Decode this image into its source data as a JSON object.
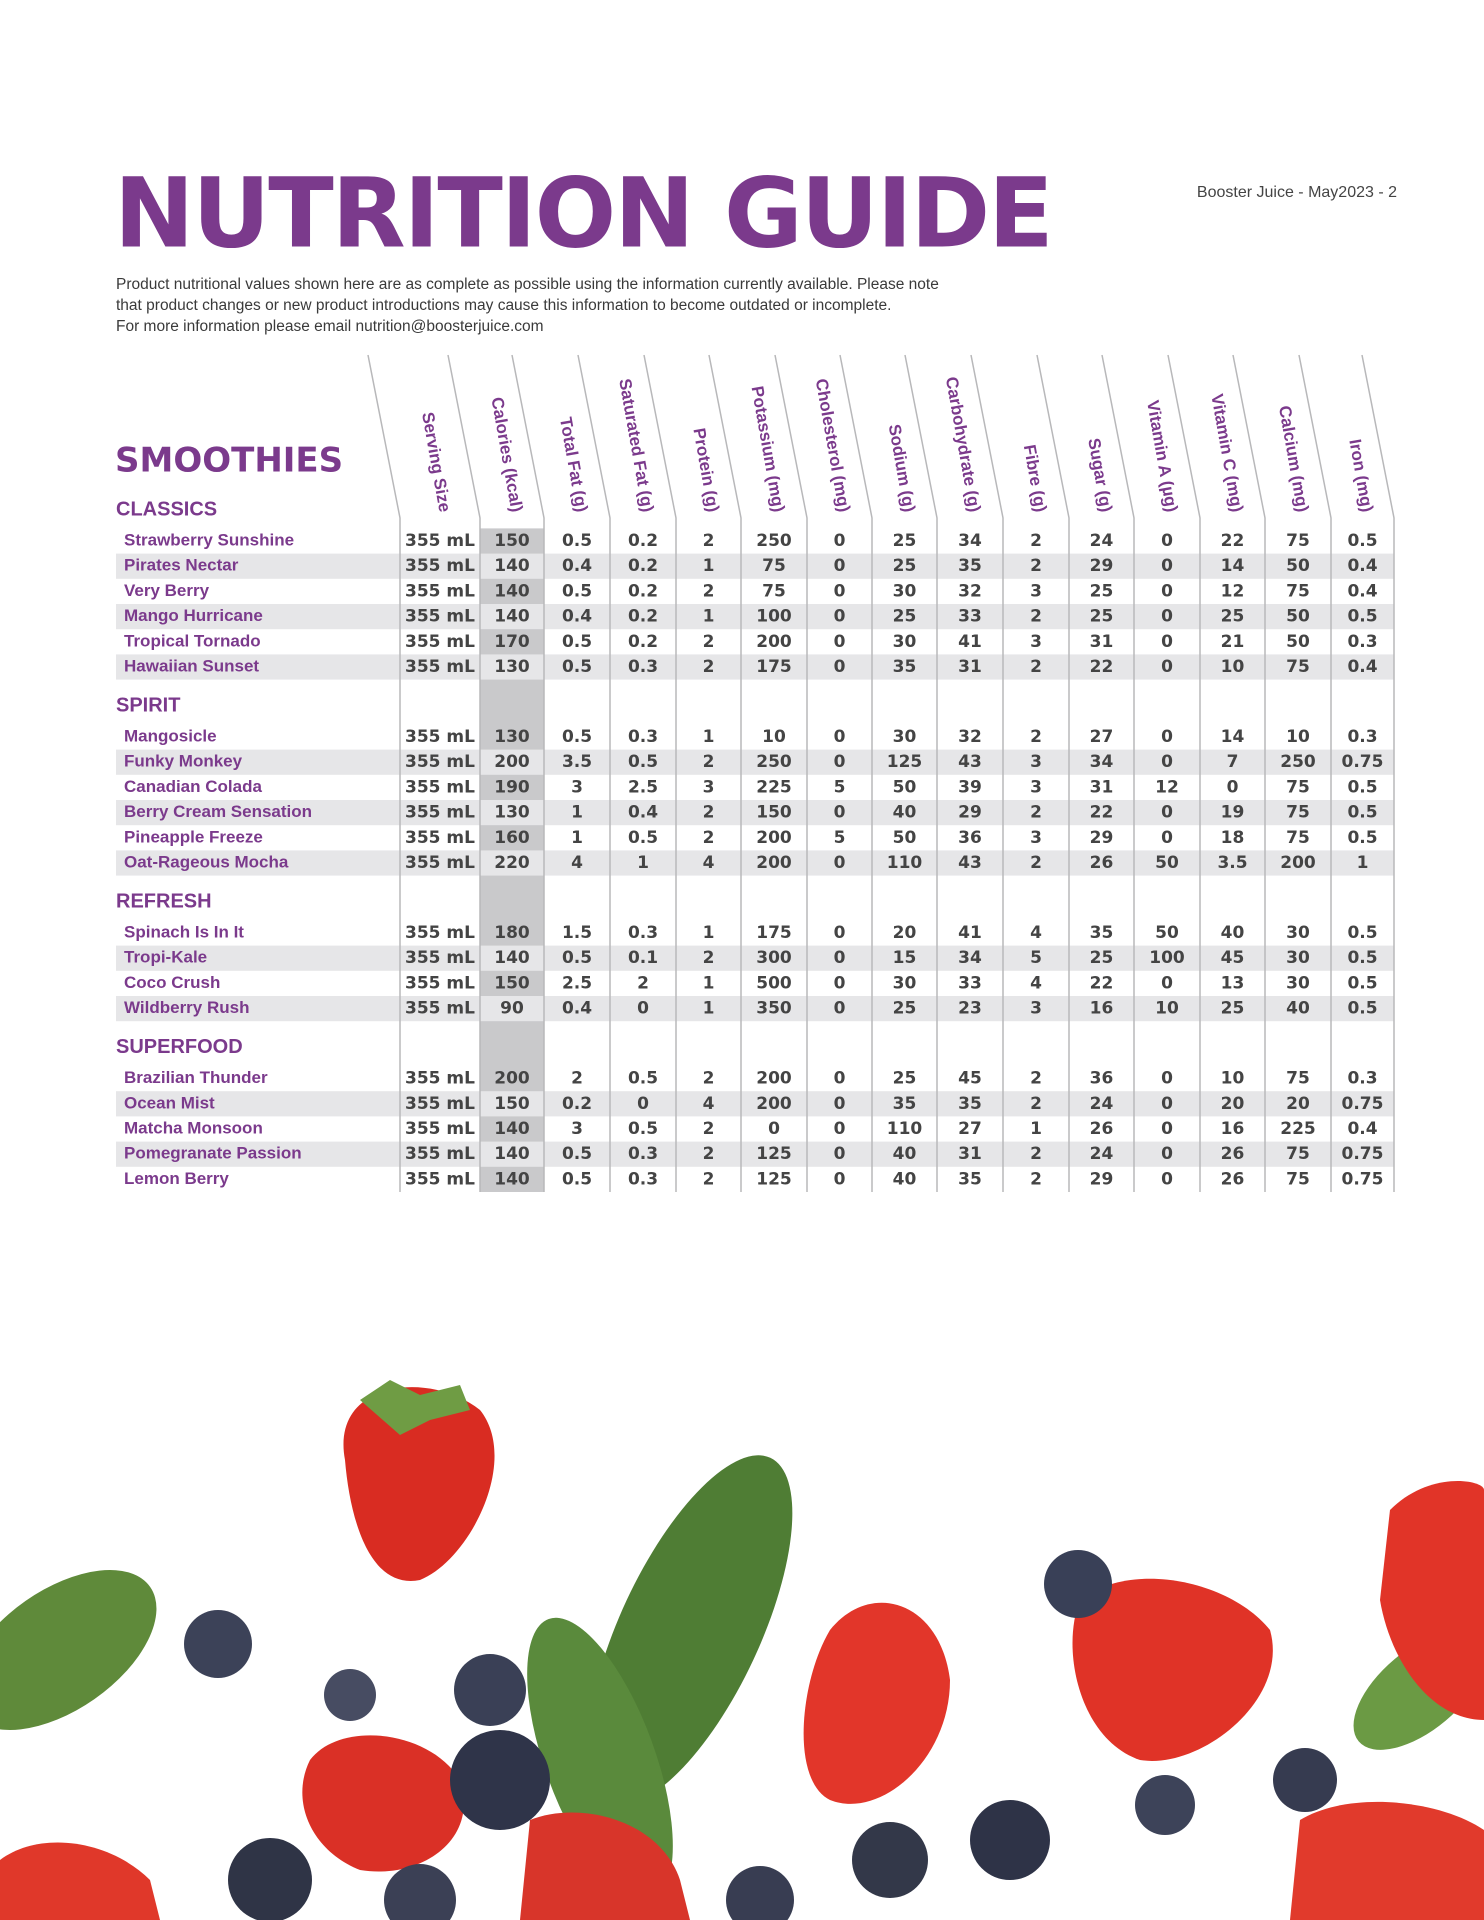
{
  "header": {
    "title": "NUTRITION GUIDE",
    "meta": "Booster Juice - May2023 - 2",
    "intro": [
      "Product nutritional values shown here are as complete as possible using the information currently available. Please note",
      "that product changes or new product introductions may cause this information to become outdated or incomplete.",
      "For more information please email  nutrition@boosterjuice.com"
    ]
  },
  "table": {
    "section_title": "SMOOTHIES",
    "columns": [
      "Serving Size",
      "Calories (kcal)",
      "Total Fat (g)",
      "Saturated Fat (g)",
      "Protein (g)",
      "Potassium (mg)",
      "Cholesterol (mg)",
      "Sodium (g)",
      "Carbohydrate (g)",
      "Fibre (g)",
      "Sugar (g)",
      "Vitamin A (µg)",
      "Vitamin C (mg)",
      "Calcium (mg)",
      "Iron (mg)"
    ],
    "groups": [
      {
        "name": "CLASSICS",
        "rows": [
          {
            "name": "Strawberry Sunshine",
            "values": [
              "355 mL",
              150,
              0.5,
              0.2,
              2,
              250,
              0,
              25,
              34,
              2,
              24,
              0,
              22,
              75,
              0.5
            ]
          },
          {
            "name": "Pirates Nectar",
            "values": [
              "355 mL",
              140,
              0.4,
              0.2,
              1,
              75,
              0,
              25,
              35,
              2,
              29,
              0,
              14,
              50,
              0.4
            ]
          },
          {
            "name": "Very Berry",
            "values": [
              "355 mL",
              140,
              0.5,
              0.2,
              2,
              75,
              0,
              30,
              32,
              3,
              25,
              0,
              12,
              75,
              0.4
            ]
          },
          {
            "name": "Mango Hurricane",
            "values": [
              "355 mL",
              140,
              0.4,
              0.2,
              1,
              100,
              0,
              25,
              33,
              2,
              25,
              0,
              25,
              50,
              0.5
            ]
          },
          {
            "name": "Tropical Tornado",
            "values": [
              "355 mL",
              170,
              0.5,
              0.2,
              2,
              200,
              0,
              30,
              41,
              3,
              31,
              0,
              21,
              50,
              0.3
            ]
          },
          {
            "name": "Hawaiian Sunset",
            "values": [
              "355 mL",
              130,
              0.5,
              0.3,
              2,
              175,
              0,
              35,
              31,
              2,
              22,
              0,
              10,
              75,
              0.4
            ]
          }
        ]
      },
      {
        "name": "SPIRIT",
        "rows": [
          {
            "name": "Mangosicle",
            "values": [
              "355 mL",
              130,
              0.5,
              0.3,
              1,
              10,
              0,
              30,
              32,
              2,
              27,
              0,
              14,
              10,
              0.3
            ]
          },
          {
            "name": "Funky Monkey",
            "values": [
              "355 mL",
              200,
              3.5,
              0.5,
              2,
              250,
              0,
              125,
              43,
              3,
              34,
              0,
              7,
              250,
              0.75
            ]
          },
          {
            "name": "Canadian Colada",
            "values": [
              "355 mL",
              190,
              3,
              2.5,
              3,
              225,
              5,
              50,
              39,
              3,
              31,
              12,
              0,
              75,
              0.5
            ]
          },
          {
            "name": "Berry Cream Sensation",
            "values": [
              "355 mL",
              130,
              1,
              0.4,
              2,
              150,
              0,
              40,
              29,
              2,
              22,
              0,
              19,
              75,
              0.5
            ]
          },
          {
            "name": "Pineapple Freeze",
            "values": [
              "355 mL",
              160,
              1,
              0.5,
              2,
              200,
              5,
              50,
              36,
              3,
              29,
              0,
              18,
              75,
              0.5
            ]
          },
          {
            "name": "Oat-Rageous Mocha",
            "values": [
              "355 mL",
              220,
              4,
              1,
              4,
              200,
              0,
              110,
              43,
              2,
              26,
              50,
              3.5,
              200,
              1
            ]
          }
        ]
      },
      {
        "name": "REFRESH",
        "rows": [
          {
            "name": "Spinach Is In It",
            "values": [
              "355 mL",
              180,
              1.5,
              0.3,
              1,
              175,
              0,
              20,
              41,
              4,
              35,
              50,
              40,
              30,
              0.5
            ]
          },
          {
            "name": "Tropi-Kale",
            "values": [
              "355 mL",
              140,
              0.5,
              0.1,
              2,
              300,
              0,
              15,
              34,
              5,
              25,
              100,
              45,
              30,
              0.5
            ]
          },
          {
            "name": "Coco Crush",
            "values": [
              "355 mL",
              150,
              2.5,
              2,
              1,
              500,
              0,
              30,
              33,
              4,
              22,
              0,
              13,
              30,
              0.5
            ]
          },
          {
            "name": "Wildberry Rush",
            "values": [
              "355 mL",
              90,
              0.4,
              0,
              1,
              350,
              0,
              25,
              23,
              3,
              16,
              10,
              25,
              40,
              0.5
            ]
          }
        ]
      },
      {
        "name": "SUPERFOOD",
        "rows": [
          {
            "name": "Brazilian Thunder",
            "values": [
              "355 mL",
              200,
              2,
              0.5,
              2,
              200,
              0,
              25,
              45,
              2,
              36,
              0,
              10,
              75,
              0.3
            ]
          },
          {
            "name": "Ocean Mist",
            "values": [
              "355 mL",
              150,
              0.2,
              0,
              4,
              200,
              0,
              35,
              35,
              2,
              24,
              0,
              20,
              20,
              0.75
            ]
          },
          {
            "name": "Matcha Monsoon",
            "values": [
              "355 mL",
              140,
              3,
              0.5,
              2,
              0,
              0,
              110,
              27,
              1,
              26,
              0,
              16,
              225,
              0.4
            ]
          },
          {
            "name": "Pomegranate Passion",
            "values": [
              "355 mL",
              140,
              0.5,
              0.3,
              2,
              125,
              0,
              40,
              31,
              2,
              24,
              0,
              26,
              75,
              0.75
            ]
          },
          {
            "name": "Lemon Berry",
            "values": [
              "355 mL",
              140,
              0.5,
              0.3,
              2,
              125,
              0,
              40,
              35,
              2,
              29,
              0,
              26,
              75,
              0.75
            ]
          }
        ]
      }
    ]
  }
}
